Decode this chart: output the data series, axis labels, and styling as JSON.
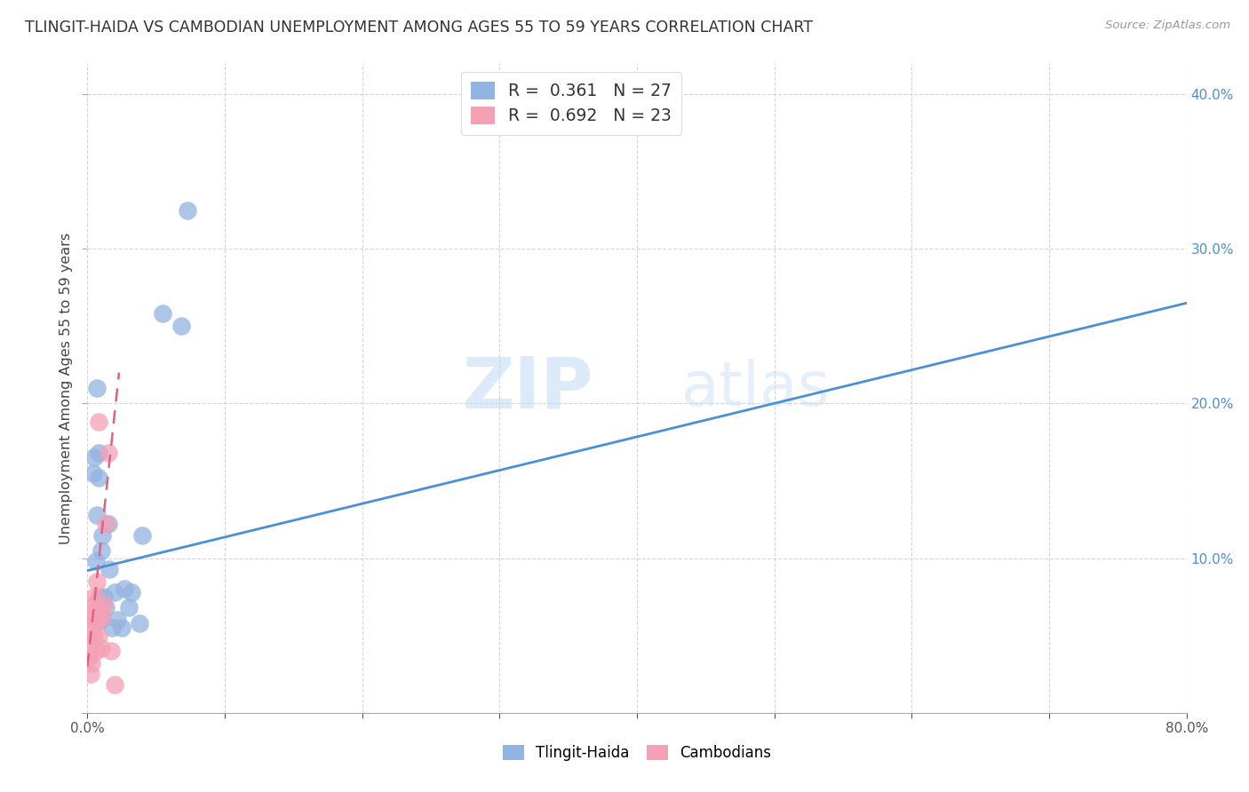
{
  "title": "TLINGIT-HAIDA VS CAMBODIAN UNEMPLOYMENT AMONG AGES 55 TO 59 YEARS CORRELATION CHART",
  "source": "Source: ZipAtlas.com",
  "ylabel": "Unemployment Among Ages 55 to 59 years",
  "xlabel_label_tlingit": "Tlingit-Haida",
  "xlabel_label_cambodian": "Cambodians",
  "xlim": [
    0.0,
    0.8
  ],
  "ylim": [
    0.0,
    0.42
  ],
  "xticks": [
    0.0,
    0.1,
    0.2,
    0.3,
    0.4,
    0.5,
    0.6,
    0.7,
    0.8
  ],
  "yticks": [
    0.0,
    0.1,
    0.2,
    0.3,
    0.4
  ],
  "xtick_labels_show": [
    "0.0%",
    "",
    "",
    "",
    "",
    "",
    "",
    "",
    "80.0%"
  ],
  "ytick_labels_right": [
    "",
    "10.0%",
    "20.0%",
    "30.0%",
    "40.0%"
  ],
  "tlingit_R": 0.361,
  "tlingit_N": 27,
  "cambodian_R": 0.692,
  "cambodian_N": 23,
  "tlingit_color": "#92b4e0",
  "cambodian_color": "#f4a0b5",
  "tlingit_line_color": "#4a90d9",
  "cambodian_line_color": "#e06080",
  "watermark_zip": "ZIP",
  "watermark_atlas": "atlas",
  "tlingit_scatter_x": [
    0.004,
    0.005,
    0.006,
    0.007,
    0.007,
    0.008,
    0.008,
    0.009,
    0.01,
    0.01,
    0.011,
    0.012,
    0.013,
    0.015,
    0.016,
    0.018,
    0.02,
    0.022,
    0.025,
    0.027,
    0.03,
    0.032,
    0.038,
    0.04,
    0.055,
    0.068,
    0.073
  ],
  "tlingit_scatter_y": [
    0.155,
    0.165,
    0.098,
    0.128,
    0.21,
    0.152,
    0.168,
    0.075,
    0.105,
    0.06,
    0.115,
    0.075,
    0.068,
    0.122,
    0.093,
    0.055,
    0.078,
    0.06,
    0.055,
    0.08,
    0.068,
    0.078,
    0.058,
    0.115,
    0.258,
    0.25,
    0.325
  ],
  "cambodian_scatter_x": [
    0.001,
    0.002,
    0.002,
    0.003,
    0.003,
    0.003,
    0.004,
    0.004,
    0.005,
    0.005,
    0.006,
    0.006,
    0.007,
    0.008,
    0.008,
    0.009,
    0.01,
    0.011,
    0.012,
    0.013,
    0.015,
    0.017,
    0.02
  ],
  "cambodian_scatter_y": [
    0.035,
    0.045,
    0.025,
    0.055,
    0.065,
    0.032,
    0.06,
    0.07,
    0.05,
    0.075,
    0.06,
    0.04,
    0.085,
    0.05,
    0.188,
    0.068,
    0.042,
    0.062,
    0.07,
    0.122,
    0.168,
    0.04,
    0.018
  ],
  "tlingit_line_x": [
    0.0,
    0.8
  ],
  "tlingit_line_y": [
    0.092,
    0.265
  ],
  "cambodian_line_x": [
    0.0,
    0.023
  ],
  "cambodian_line_y": [
    0.03,
    0.22
  ]
}
